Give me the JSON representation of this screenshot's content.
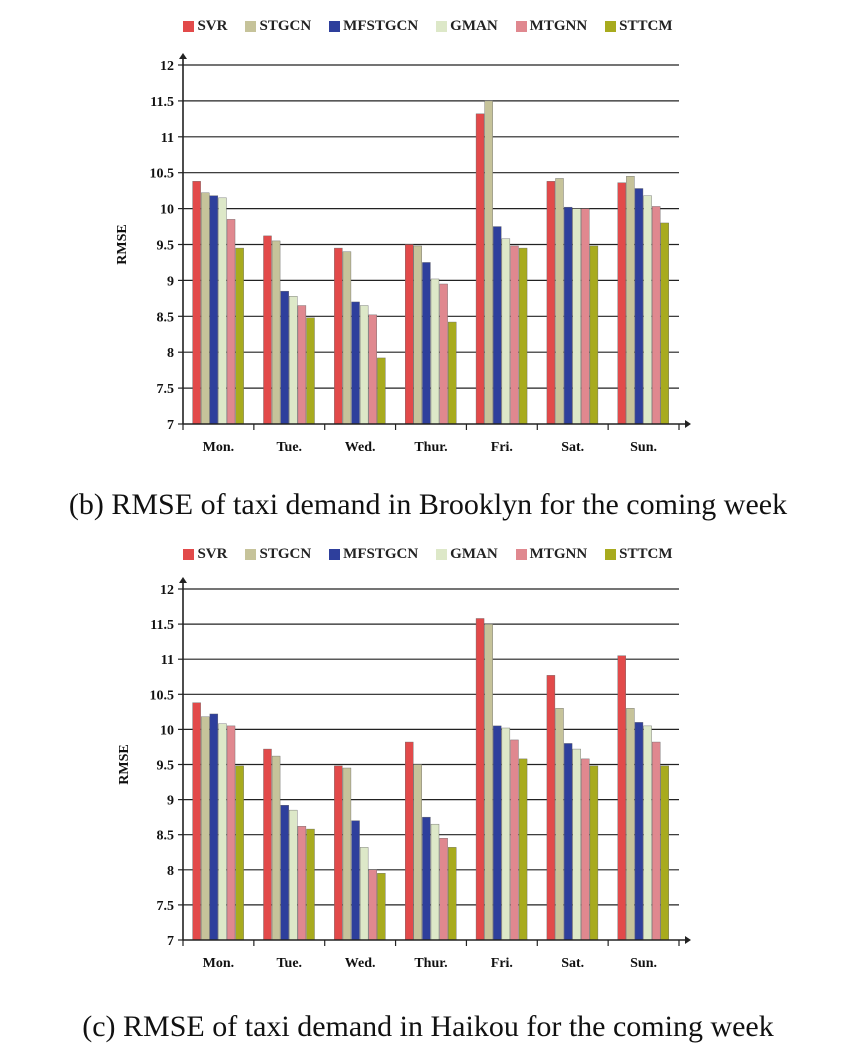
{
  "colors": {
    "SVR": "#e24a4a",
    "STGCN": "#c6c39a",
    "MFSTGCN": "#2e3f9c",
    "GMAN": "#dde8c8",
    "MTGNN": "#e0888f",
    "STTCM": "#a8ab1e"
  },
  "chart_data": [
    {
      "type": "bar",
      "caption": "(b) RMSE of taxi demand in Brooklyn for the coming week",
      "ylabel": "RMSE",
      "xlabel": "",
      "ylim": [
        7,
        12
      ],
      "yticks": [
        "7",
        "7.5",
        "8",
        "8.5",
        "9",
        "9.5",
        "10",
        "10.5",
        "11",
        "11.5",
        "12"
      ],
      "grid": true,
      "legend": "top",
      "categories": [
        "Mon.",
        "Tue.",
        "Wed.",
        "Thur.",
        "Fri.",
        "Sat.",
        "Sun."
      ],
      "series": [
        {
          "name": "SVR",
          "values": [
            10.38,
            9.62,
            9.45,
            9.5,
            11.32,
            10.38,
            10.36
          ]
        },
        {
          "name": "STGCN",
          "values": [
            10.22,
            9.55,
            9.4,
            9.48,
            11.5,
            10.42,
            10.45
          ]
        },
        {
          "name": "MFSTGCN",
          "values": [
            10.18,
            8.85,
            8.7,
            9.25,
            9.75,
            10.02,
            10.28
          ]
        },
        {
          "name": "GMAN",
          "values": [
            10.15,
            8.78,
            8.65,
            9.02,
            9.58,
            10.0,
            10.18
          ]
        },
        {
          "name": "MTGNN",
          "values": [
            9.85,
            8.65,
            8.52,
            8.95,
            9.48,
            10.0,
            10.03
          ]
        },
        {
          "name": "STTCM",
          "values": [
            9.45,
            8.48,
            7.92,
            8.42,
            9.45,
            9.48,
            9.8
          ]
        }
      ]
    },
    {
      "type": "bar",
      "caption": "(c) RMSE of taxi demand in Haikou for the coming week",
      "ylabel": "RMSE",
      "xlabel": "",
      "ylim": [
        7,
        12
      ],
      "yticks": [
        "7",
        "7.5",
        "8",
        "8.5",
        "9",
        "9.5",
        "10",
        "10.5",
        "11",
        "11.5",
        "12"
      ],
      "grid": true,
      "legend": "top",
      "categories": [
        "Mon.",
        "Tue.",
        "Wed.",
        "Thur.",
        "Fri.",
        "Sat.",
        "Sun."
      ],
      "series": [
        {
          "name": "SVR",
          "values": [
            10.38,
            9.72,
            9.48,
            9.82,
            11.58,
            10.77,
            11.05
          ]
        },
        {
          "name": "STGCN",
          "values": [
            10.18,
            9.62,
            9.45,
            9.5,
            11.5,
            10.3,
            10.3
          ]
        },
        {
          "name": "MFSTGCN",
          "values": [
            10.22,
            8.92,
            8.7,
            8.75,
            10.05,
            9.8,
            10.1
          ]
        },
        {
          "name": "GMAN",
          "values": [
            10.08,
            8.85,
            8.32,
            8.65,
            10.02,
            9.72,
            10.05
          ]
        },
        {
          "name": "MTGNN",
          "values": [
            10.05,
            8.62,
            8.0,
            8.45,
            9.85,
            9.58,
            9.82
          ]
        },
        {
          "name": "STTCM",
          "values": [
            9.48,
            8.58,
            7.95,
            8.32,
            9.58,
            9.48,
            9.48
          ]
        }
      ]
    }
  ]
}
